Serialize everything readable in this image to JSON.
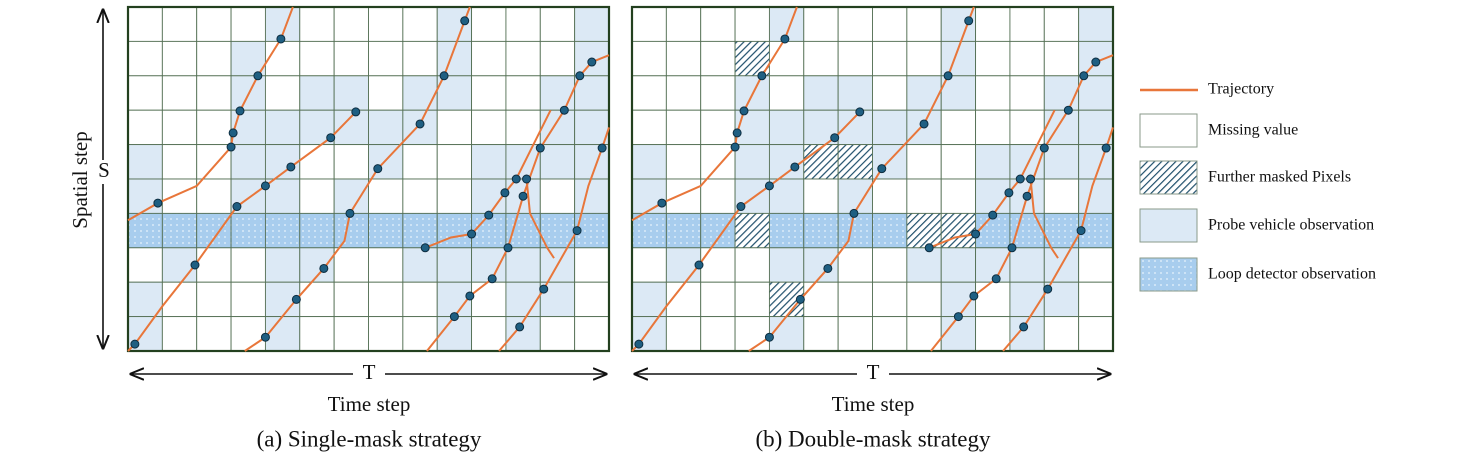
{
  "y_axis": {
    "label": "Spatial step",
    "symbol": "S"
  },
  "panels": [
    {
      "time_symbol": "T",
      "time_label": "Time step",
      "caption": "(a) Single-mask strategy"
    },
    {
      "time_symbol": "T",
      "time_label": "Time step",
      "caption": "(b) Double-mask strategy"
    }
  ],
  "legend": [
    "Trajectory",
    "Missing value",
    "Further masked Pixels",
    "Probe vehicle observation",
    "Loop detector observation"
  ]
}
